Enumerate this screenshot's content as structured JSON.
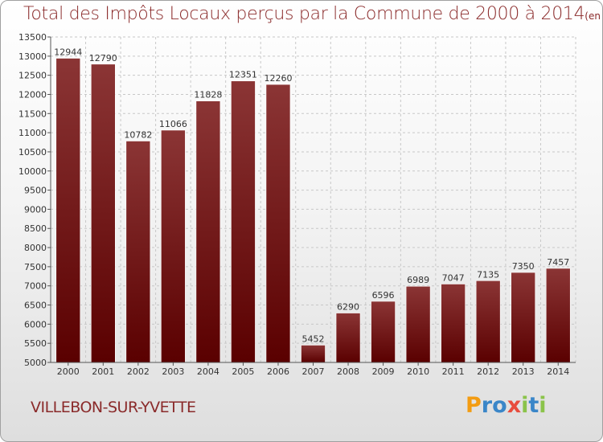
{
  "title": "Total des Impôts Locaux perçus par la Commune de 2000 à 2014",
  "title_unit": "(en milliers d'€)",
  "commune": "VILLEBON-SUR-YVETTE",
  "logo": {
    "text": "Proxiti",
    "letters": [
      {
        "ch": "P",
        "color": "#f39c12"
      },
      {
        "ch": "r",
        "color": "#3a86c8"
      },
      {
        "ch": "o",
        "color": "#3a86c8"
      },
      {
        "ch": "x",
        "color": "#e84c3d"
      },
      {
        "ch": "i",
        "color": "#8bc34a"
      },
      {
        "ch": "t",
        "color": "#3a86c8"
      },
      {
        "ch": "i",
        "color": "#8bc34a"
      }
    ]
  },
  "colors": {
    "bar_top": "#8b3535",
    "bar_bottom": "#5a0000",
    "text": "#8a2a2a"
  },
  "chart_data": {
    "type": "bar",
    "title": "Total des Impôts Locaux perçus par la Commune de 2000 à 2014",
    "subtitle": "(en milliers d'€)",
    "xlabel": "",
    "ylabel": "",
    "categories": [
      "2000",
      "2001",
      "2002",
      "2003",
      "2004",
      "2005",
      "2006",
      "2007",
      "2008",
      "2009",
      "2010",
      "2011",
      "2012",
      "2013",
      "2014"
    ],
    "values": [
      12944,
      12790,
      10782,
      11066,
      11828,
      12351,
      12260,
      5452,
      6290,
      6596,
      6989,
      7047,
      7135,
      7350,
      7457
    ],
    "ylim": [
      5000,
      13500
    ],
    "yticks": [
      5000,
      5500,
      6000,
      6500,
      7000,
      7500,
      8000,
      8500,
      9000,
      9500,
      10000,
      10500,
      11000,
      11500,
      12000,
      12500,
      13000,
      13500
    ],
    "grid": true,
    "legend": "none"
  }
}
